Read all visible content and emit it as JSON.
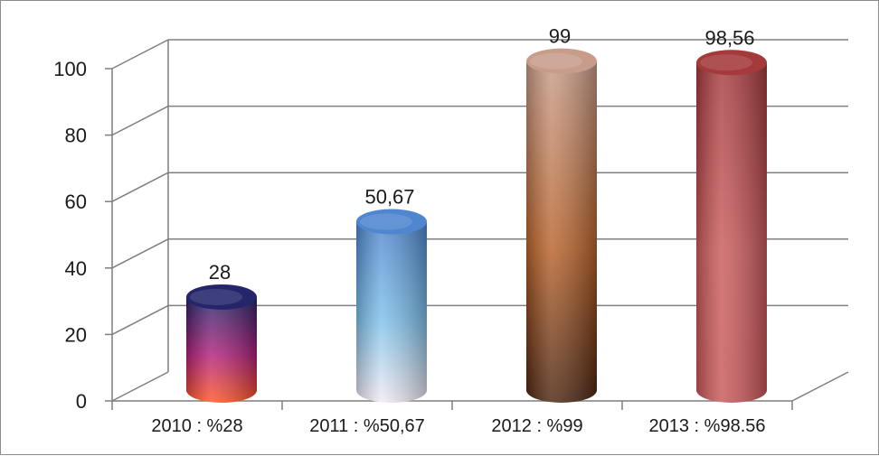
{
  "chart_data": {
    "type": "bar",
    "style": "3d-cylinder",
    "categories": [
      "2010 : %28",
      "2011 : %50,67",
      "2012 : %99",
      "2013 : %98.56"
    ],
    "values": [
      28,
      50.67,
      99,
      98.56
    ],
    "data_labels": [
      "28",
      "50,67",
      "99",
      "98,56"
    ],
    "y_ticks": [
      "0",
      "20",
      "40",
      "60",
      "80",
      "100"
    ],
    "ylim": [
      0,
      100
    ],
    "grid": true,
    "legend": "none",
    "bar_colors": {
      "top": [
        "#24256b",
        "#4f86cf",
        "#c89c8a",
        "#a43a3c"
      ],
      "bottom": [
        "#ff5522",
        "#f3eaf2",
        "#4a2410",
        "#c85658"
      ],
      "body_mid": [
        "#b1207a",
        "#7fc1ea",
        "#b7622a",
        "#c95a5c"
      ]
    }
  }
}
